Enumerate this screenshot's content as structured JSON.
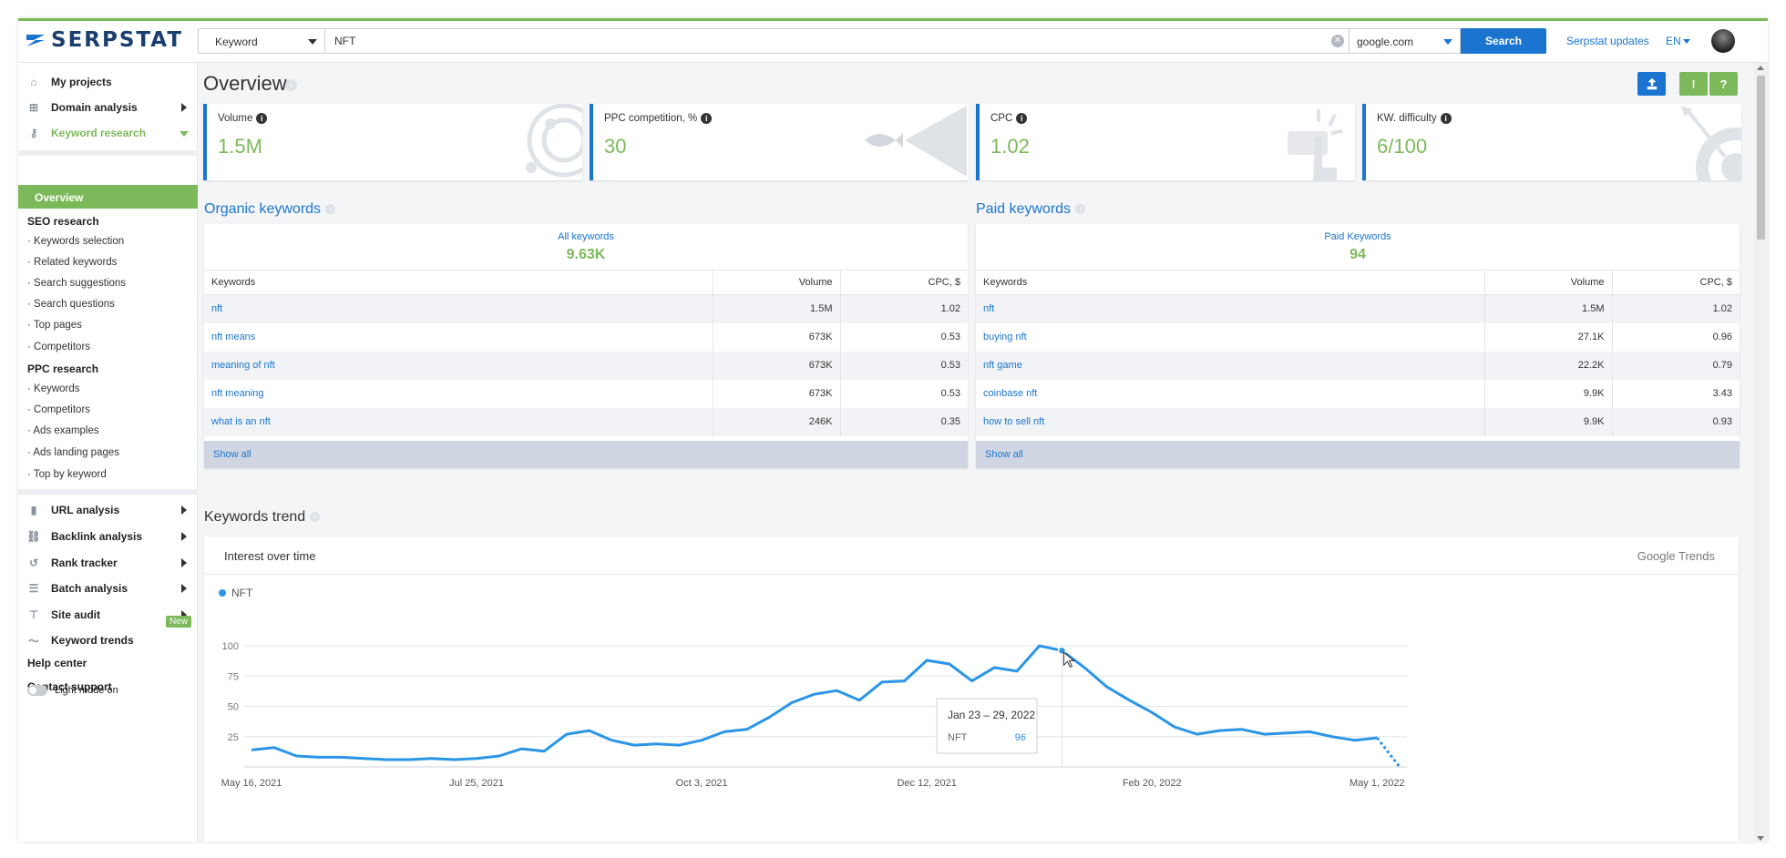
{
  "header": {
    "logo": "SERPSTAT",
    "search_type": "Keyword",
    "search_value": "NFT",
    "database": "google.com",
    "search_button": "Search",
    "updates_link": "Serpstat updates",
    "language": "EN"
  },
  "sidebar": {
    "my_projects": "My projects",
    "domain_analysis": "Domain analysis",
    "keyword_research": "Keyword research",
    "overview": "Overview",
    "seo_research": "SEO research",
    "seo_items": [
      "Keywords selection",
      "Related keywords",
      "Search suggestions",
      "Search questions",
      "Top pages",
      "Competitors"
    ],
    "ppc_research": "PPC research",
    "ppc_items": [
      "Keywords",
      "Competitors",
      "Ads examples",
      "Ads landing pages",
      "Top by keyword"
    ],
    "url_analysis": "URL analysis",
    "backlink_analysis": "Backlink analysis",
    "rank_tracker": "Rank tracker",
    "batch_analysis": "Batch analysis",
    "site_audit": "Site audit",
    "keyword_trends": "Keyword trends",
    "new_badge": "New",
    "help_center": "Help center",
    "contact_support": "Contact support",
    "light_mode": "Light mode on"
  },
  "main": {
    "title": "Overview",
    "metrics": [
      {
        "label": "Volume",
        "value": "1.5M"
      },
      {
        "label": "PPC competition, %",
        "value": "30"
      },
      {
        "label": "CPC",
        "value": "1.02"
      },
      {
        "label": "KW. difficulty",
        "value": "6/100"
      }
    ],
    "organic": {
      "title": "Organic keywords",
      "summary_label": "All keywords",
      "summary_value": "9.63K",
      "columns": [
        "Keywords",
        "Volume",
        "CPC, $"
      ],
      "rows": [
        {
          "keyword": "nft",
          "volume": "1.5M",
          "cpc": "1.02"
        },
        {
          "keyword": "nft means",
          "volume": "673K",
          "cpc": "0.53"
        },
        {
          "keyword": "meaning of nft",
          "volume": "673K",
          "cpc": "0.53"
        },
        {
          "keyword": "nft meaning",
          "volume": "673K",
          "cpc": "0.53"
        },
        {
          "keyword": "what is an nft",
          "volume": "246K",
          "cpc": "0.35"
        }
      ],
      "show_all": "Show all"
    },
    "paid": {
      "title": "Paid keywords",
      "summary_label": "Paid Keywords",
      "summary_value": "94",
      "columns": [
        "Keywords",
        "Volume",
        "CPC, $"
      ],
      "rows": [
        {
          "keyword": "nft",
          "volume": "1.5M",
          "cpc": "1.02"
        },
        {
          "keyword": "buying nft",
          "volume": "27.1K",
          "cpc": "0.96"
        },
        {
          "keyword": "nft game",
          "volume": "22.2K",
          "cpc": "0.79"
        },
        {
          "keyword": "coinbase nft",
          "volume": "9.9K",
          "cpc": "3.43"
        },
        {
          "keyword": "how to sell nft",
          "volume": "9.9K",
          "cpc": "0.93"
        }
      ],
      "show_all": "Show all"
    },
    "trend": {
      "title": "Keywords trend",
      "subtitle": "Interest over time",
      "provider": "Google Trends",
      "tooltip": {
        "date": "Jan 23 – 29, 2022",
        "series": "NFT",
        "value": "96"
      }
    }
  },
  "colors": {
    "accent": "#1b75d0",
    "green": "#7cb95a",
    "line": "#2b95e6"
  },
  "chart_data": {
    "type": "line",
    "series": [
      {
        "name": "NFT",
        "values": [
          14,
          16,
          9,
          8,
          8,
          7,
          6,
          6,
          7,
          6,
          7,
          9,
          15,
          13,
          27,
          30,
          22,
          18,
          19,
          18,
          22,
          29,
          31,
          41,
          53,
          60,
          63,
          55,
          70,
          71,
          88,
          85,
          71,
          82,
          79,
          100,
          96,
          82,
          66,
          55,
          45,
          33,
          27,
          30,
          31,
          27,
          28,
          29,
          25,
          22,
          24,
          0
        ]
      }
    ],
    "x_ticks": [
      "May 16, 2021",
      "Jul 25, 2021",
      "Oct 3, 2021",
      "Dec 12, 2021",
      "Feb 20, 2022",
      "May 1, 2022"
    ],
    "y_ticks": [
      25,
      50,
      75,
      100
    ],
    "ylim": [
      0,
      100
    ],
    "legend": "top-left",
    "grid": true,
    "partial_last_segment": true
  }
}
